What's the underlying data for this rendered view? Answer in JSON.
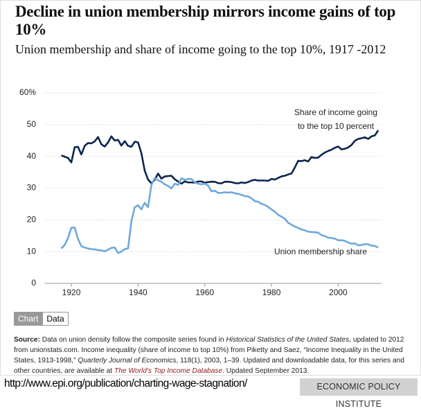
{
  "chart_data": {
    "type": "line",
    "title": "Decline in union membership mirrors income gains of top 10%",
    "subtitle": "Union membership and share of income going to the top 10%, 1917 -2012",
    "x": [
      1917,
      1918,
      1919,
      1920,
      1921,
      1922,
      1923,
      1924,
      1925,
      1926,
      1927,
      1928,
      1929,
      1930,
      1931,
      1932,
      1933,
      1934,
      1935,
      1936,
      1937,
      1938,
      1939,
      1940,
      1941,
      1942,
      1943,
      1944,
      1945,
      1946,
      1947,
      1948,
      1949,
      1950,
      1951,
      1952,
      1953,
      1954,
      1955,
      1956,
      1957,
      1958,
      1959,
      1960,
      1961,
      1962,
      1963,
      1964,
      1965,
      1966,
      1967,
      1968,
      1969,
      1970,
      1971,
      1972,
      1973,
      1974,
      1975,
      1976,
      1977,
      1978,
      1979,
      1980,
      1981,
      1982,
      1983,
      1984,
      1985,
      1986,
      1987,
      1988,
      1989,
      1990,
      1991,
      1992,
      1993,
      1994,
      1995,
      1996,
      1997,
      1998,
      1999,
      2000,
      2001,
      2002,
      2003,
      2004,
      2005,
      2006,
      2007,
      2008,
      2009,
      2010,
      2011,
      2012
    ],
    "series": [
      {
        "name": "Share of income going to the top 10 percent",
        "color": "#0c2350",
        "values": [
          40.3,
          39.9,
          39.5,
          38.1,
          42.9,
          43.0,
          40.6,
          43.3,
          44.2,
          44.1,
          44.7,
          46.1,
          43.8,
          43.1,
          44.4,
          46.3,
          45.0,
          45.2,
          43.4,
          44.8,
          43.3,
          43.0,
          44.6,
          44.4,
          41.0,
          35.5,
          32.7,
          31.5,
          32.6,
          34.6,
          33.0,
          33.7,
          33.8,
          33.9,
          32.8,
          32.1,
          31.4,
          32.1,
          31.8,
          31.8,
          31.7,
          32.1,
          32.1,
          31.7,
          31.9,
          32.0,
          32.0,
          31.6,
          31.5,
          32.0,
          32.0,
          31.9,
          31.6,
          31.5,
          31.8,
          31.6,
          31.9,
          32.4,
          32.6,
          32.4,
          32.4,
          32.4,
          32.3,
          32.9,
          32.7,
          33.2,
          33.7,
          33.9,
          34.3,
          34.6,
          36.5,
          38.6,
          38.5,
          38.8,
          38.4,
          39.8,
          39.5,
          39.6,
          40.5,
          41.2,
          41.7,
          42.1,
          42.7,
          43.1,
          42.2,
          42.4,
          42.8,
          43.6,
          44.9,
          45.5,
          45.7,
          46.0,
          45.5,
          46.3,
          46.6,
          48.2
        ]
      },
      {
        "name": "Union membership share",
        "color": "#6ea8dc",
        "values": [
          11.0,
          12.1,
          14.3,
          17.5,
          17.6,
          14.0,
          11.7,
          11.3,
          11.0,
          10.8,
          10.7,
          10.5,
          10.4,
          10.1,
          10.6,
          11.2,
          11.3,
          9.6,
          10.0,
          10.8,
          11.0,
          19.5,
          24.0,
          24.6,
          23.3,
          25.4,
          24.0,
          31.0,
          33.2,
          32.5,
          32.0,
          31.2,
          30.7,
          29.9,
          31.4,
          31.0,
          33.1,
          32.6,
          32.9,
          32.9,
          31.8,
          31.4,
          31.2,
          31.4,
          30.8,
          29.0,
          29.2,
          28.5,
          28.5,
          28.7,
          28.6,
          28.7,
          28.4,
          28.2,
          27.9,
          27.5,
          27.4,
          26.8,
          25.9,
          25.7,
          25.1,
          24.7,
          24.1,
          23.3,
          22.6,
          21.6,
          21.0,
          20.4,
          19.1,
          18.5,
          17.9,
          17.5,
          17.0,
          16.7,
          16.3,
          16.2,
          16.1,
          16.0,
          15.2,
          14.9,
          14.4,
          14.3,
          14.1,
          13.6,
          13.6,
          13.4,
          12.9,
          12.5,
          12.6,
          12.0,
          12.1,
          12.4,
          12.3,
          11.9,
          11.8,
          11.3
        ]
      }
    ],
    "xlim": [
      1912,
      2013
    ],
    "xticks": [
      1920,
      1940,
      1960,
      1980,
      2000
    ],
    "ylim": [
      0,
      60
    ],
    "yticks": [
      0,
      10,
      20,
      30,
      40,
      50,
      {
        "value": 60,
        "label": "60%"
      }
    ],
    "grid": true
  },
  "tabs": [
    "Chart",
    "Data"
  ],
  "source": [
    {
      "text": "Source:",
      "style": "bold"
    },
    {
      "text": " Data on union density follow the composite series found in ",
      "style": "normal"
    },
    {
      "text": "Historical Statistics of the United States",
      "style": "italic"
    },
    {
      "text": ", updated to 2012 from unionstats.com. Income inequality (share of income to top 10%) from Piketty and Saez, “Income Inequality in the United States, 1913-1998,” ",
      "style": "normal"
    },
    {
      "text": "Quarterly Journal of Economics",
      "style": "italic"
    },
    {
      "text": ", 118(1), 2003, 1–39. Updated and downloadable data, for this series and other countries, are available at ",
      "style": "normal"
    },
    {
      "text": "The World's Top Income Database",
      "style": "link"
    },
    {
      "text": ". Updated September 2013.",
      "style": "normal"
    }
  ],
  "url": "http://www.epi.org/publication/charting-wage-stagnation/",
  "organization": "ECONOMIC POLICY INSTITUTE"
}
